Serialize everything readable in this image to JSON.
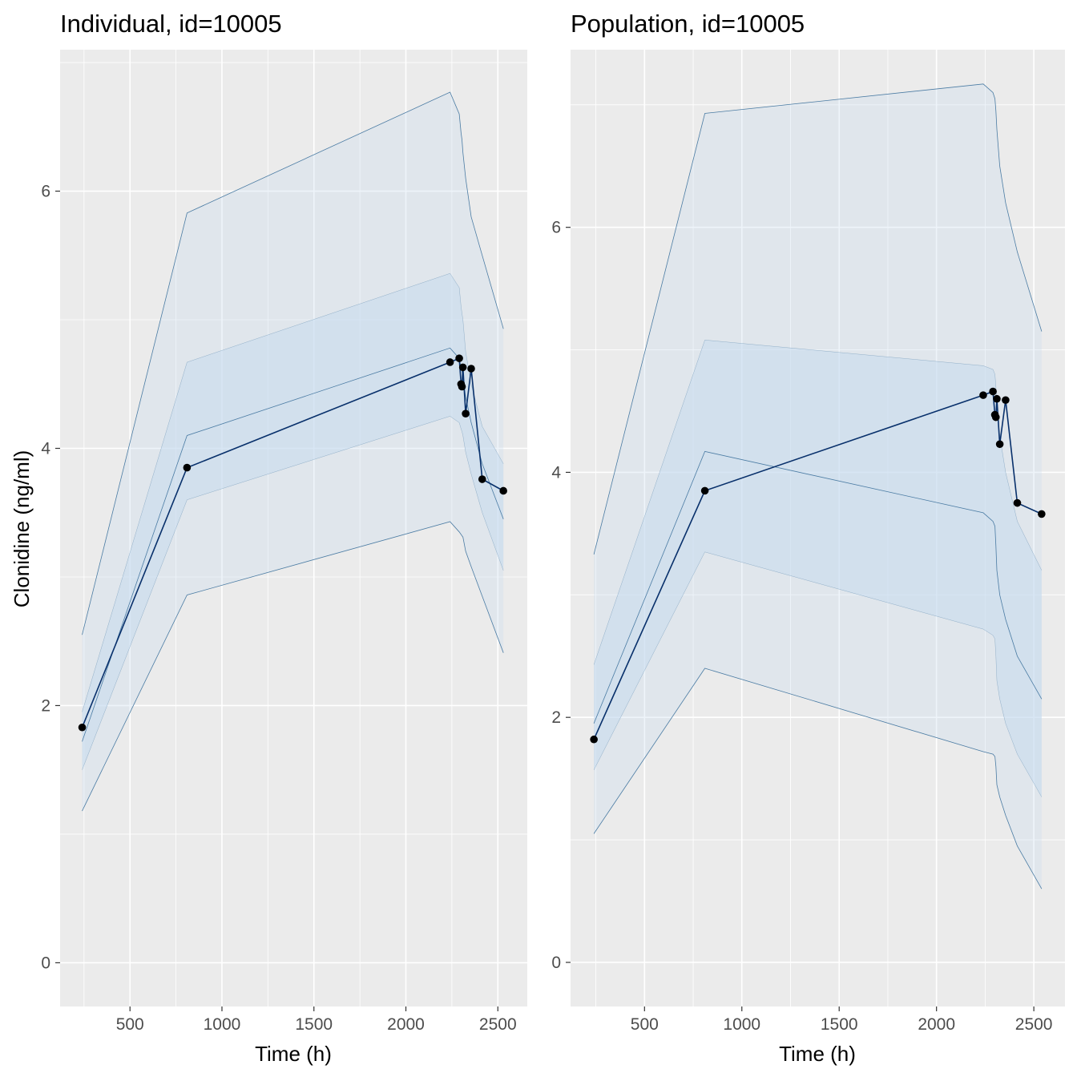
{
  "chart_data": [
    {
      "type": "line",
      "title": "Individual, id=10005",
      "xlabel": "Time (h)",
      "ylabel": "Clonidine (ng/ml)",
      "xlim": [
        120,
        2660
      ],
      "ylim": [
        -0.34,
        7.1
      ],
      "xticks": [
        500,
        1000,
        1500,
        2000,
        2500
      ],
      "yticks": [
        0,
        2,
        4,
        6
      ],
      "grid": true,
      "colors": {
        "panel_bg": "#ebebeb",
        "grid": "#ffffff",
        "band": "#c6dbef",
        "band_line": "#4a7ba3",
        "observed": "#000000",
        "observed_line": "#08306b"
      },
      "x": [
        240,
        810,
        2240,
        2290,
        2300,
        2305,
        2310,
        2325,
        2355,
        2415,
        2530
      ],
      "series": [
        {
          "role": "observed",
          "values": [
            1.83,
            3.85,
            4.67,
            4.7,
            4.5,
            4.48,
            4.63,
            4.27,
            4.62,
            3.76,
            3.67
          ]
        },
        {
          "role": "p05",
          "values": [
            1.18,
            2.86,
            3.43,
            3.35,
            3.33,
            3.32,
            3.31,
            3.2,
            3.08,
            2.85,
            2.41
          ]
        },
        {
          "role": "p25",
          "values": [
            1.5,
            3.6,
            4.25,
            4.2,
            4.15,
            4.13,
            4.1,
            3.97,
            3.8,
            3.5,
            3.05
          ]
        },
        {
          "role": "p50",
          "values": [
            1.72,
            4.1,
            4.78,
            4.7,
            4.62,
            4.6,
            4.55,
            4.4,
            4.2,
            3.88,
            3.45
          ]
        },
        {
          "role": "p75",
          "values": [
            1.95,
            4.67,
            5.36,
            5.25,
            5.1,
            5.05,
            5.0,
            4.75,
            4.5,
            4.17,
            3.88
          ]
        },
        {
          "role": "p95",
          "values": [
            2.55,
            5.83,
            6.77,
            6.6,
            6.45,
            6.4,
            6.3,
            6.1,
            5.8,
            5.5,
            4.93
          ]
        }
      ]
    },
    {
      "type": "line",
      "title": "Population, id=10005",
      "xlabel": "Time (h)",
      "ylabel": "",
      "xlim": [
        120,
        2660
      ],
      "ylim": [
        -0.36,
        7.45
      ],
      "xticks": [
        500,
        1000,
        1500,
        2000,
        2500
      ],
      "yticks": [
        0,
        2,
        4,
        6
      ],
      "grid": true,
      "colors": {
        "panel_bg": "#ebebeb",
        "grid": "#ffffff",
        "band": "#c6dbef",
        "band_line": "#4a7ba3",
        "observed": "#000000",
        "observed_line": "#08306b"
      },
      "x": [
        240,
        810,
        2240,
        2290,
        2300,
        2305,
        2310,
        2325,
        2355,
        2415,
        2540
      ],
      "series": [
        {
          "role": "observed",
          "values": [
            1.82,
            3.85,
            4.63,
            4.66,
            4.47,
            4.45,
            4.6,
            4.23,
            4.59,
            3.75,
            3.66
          ]
        },
        {
          "role": "p05",
          "values": [
            1.05,
            2.4,
            1.72,
            1.7,
            1.68,
            1.6,
            1.45,
            1.35,
            1.2,
            0.95,
            0.6
          ]
        },
        {
          "role": "p25",
          "values": [
            1.57,
            3.35,
            2.72,
            2.67,
            2.64,
            2.5,
            2.3,
            2.15,
            1.95,
            1.7,
            1.35
          ]
        },
        {
          "role": "p50",
          "values": [
            1.95,
            4.17,
            3.67,
            3.6,
            3.56,
            3.4,
            3.2,
            3.0,
            2.8,
            2.5,
            2.15
          ]
        },
        {
          "role": "p75",
          "values": [
            2.43,
            5.08,
            4.87,
            4.84,
            4.8,
            4.7,
            4.55,
            4.3,
            4.0,
            3.6,
            3.2
          ]
        },
        {
          "role": "p95",
          "values": [
            3.33,
            6.93,
            7.17,
            7.1,
            7.05,
            6.95,
            6.8,
            6.5,
            6.2,
            5.8,
            5.15
          ]
        }
      ]
    }
  ]
}
